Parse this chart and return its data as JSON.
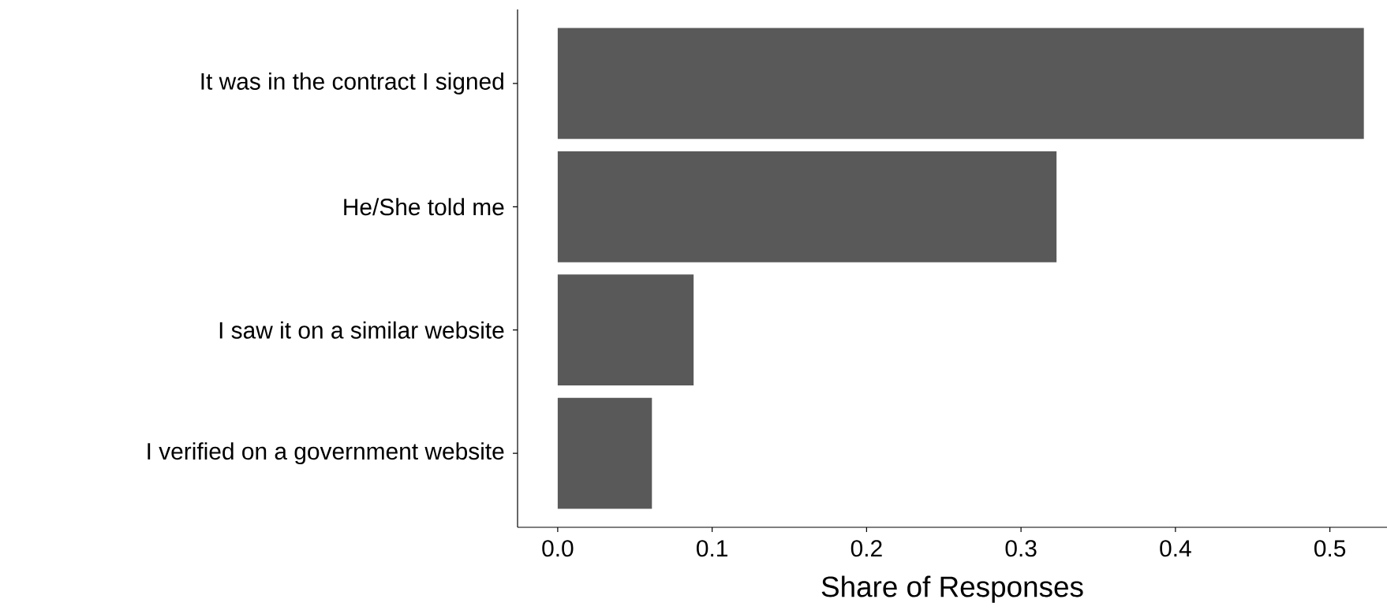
{
  "chart_data": {
    "type": "bar",
    "orientation": "horizontal",
    "xlabel": "Share of Responses",
    "categories": [
      "It was in the contract I signed",
      "He/She told me",
      "I saw it on a similar website",
      "I verified on a government website"
    ],
    "values": [
      0.522,
      0.323,
      0.088,
      0.061
    ],
    "color": "#595959",
    "xlim": [
      -0.026,
      0.537
    ],
    "xticks": [
      {
        "value": 0,
        "label": "0.0"
      },
      {
        "value": 0.1,
        "label": "0.1"
      },
      {
        "value": 0.2,
        "label": "0.2"
      },
      {
        "value": 0.3,
        "label": "0.3"
      },
      {
        "value": 0.4,
        "label": "0.4"
      },
      {
        "value": 0.5,
        "label": "0.5"
      }
    ],
    "grid": false
  }
}
